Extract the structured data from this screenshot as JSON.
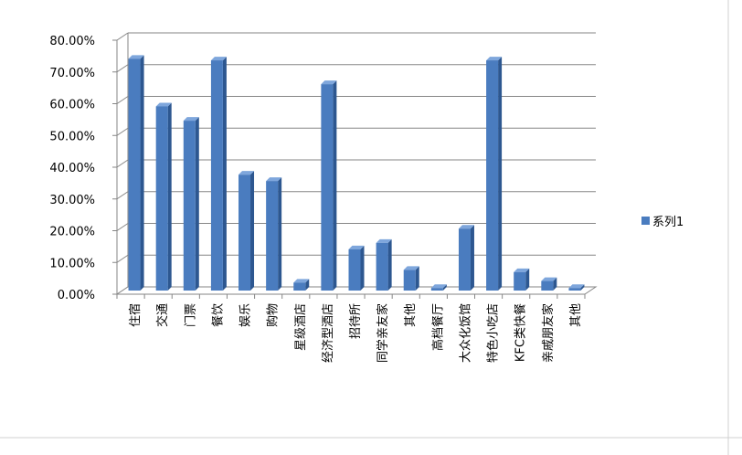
{
  "chart_data": {
    "type": "bar",
    "categories": [
      "住宿",
      "交通",
      "门票",
      "餐饮",
      "娱乐",
      "购物",
      "星级酒店",
      "经济型酒店",
      "招待所",
      "同学亲友家",
      "其他",
      "高档餐厅",
      "大众化饭馆",
      "特色小吃店",
      "KFC类快餐",
      "亲戚朋友家",
      "其他"
    ],
    "series": [
      {
        "name": "系列1",
        "values": [
          0.73,
          0.58,
          0.535,
          0.725,
          0.365,
          0.345,
          0.025,
          0.65,
          0.13,
          0.15,
          0.065,
          0.008,
          0.195,
          0.725,
          0.058,
          0.03,
          0.008
        ]
      }
    ],
    "ylim": [
      0,
      0.8
    ],
    "yticks": [
      "0.00%",
      "10.00%",
      "20.00%",
      "30.00%",
      "40.00%",
      "50.00%",
      "60.00%",
      "70.00%",
      "80.00%"
    ],
    "grid": true,
    "legend_position": "right",
    "colors": {
      "bar": "#4a7cbf",
      "bar_side": "#2d5790",
      "bar_top": "#7ea6dc",
      "grid": "#868686"
    }
  }
}
